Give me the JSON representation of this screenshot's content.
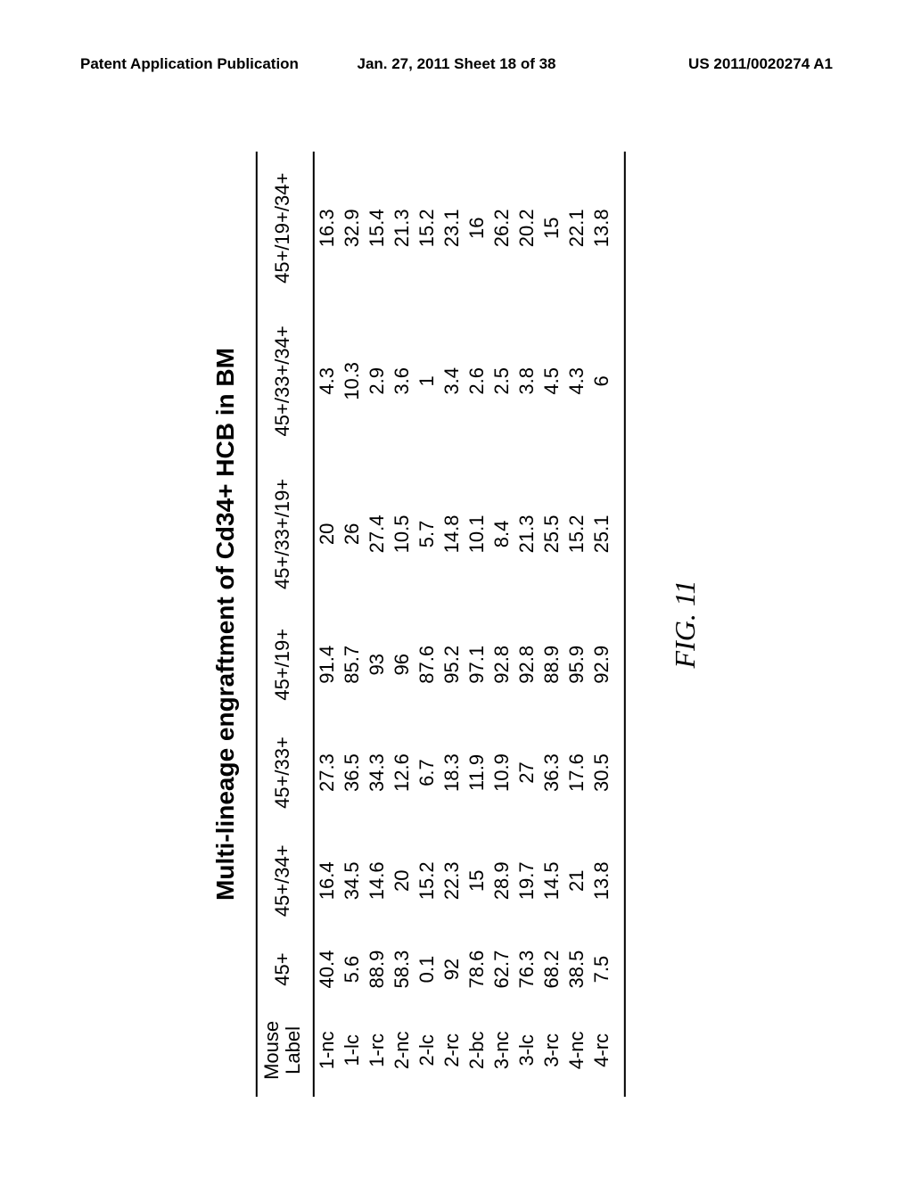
{
  "header": {
    "left": "Patent Application Publication",
    "center": "Jan. 27, 2011  Sheet 18 of 38",
    "right": "US 2011/0020274 A1"
  },
  "table": {
    "title": "Multi-lineage engraftment of Cd34+ HCB in BM",
    "columns": [
      "Mouse\nLabel",
      "45+",
      "45+/34+",
      "45+/33+",
      "45+/19+",
      "45+/33+/19+",
      "45+/33+/34+",
      "45+/19+/34+"
    ],
    "rows": [
      [
        "1-nc",
        "40.4",
        "16.4",
        "27.3",
        "91.4",
        "20",
        "4.3",
        "16.3"
      ],
      [
        "1-lc",
        "5.6",
        "34.5",
        "36.5",
        "85.7",
        "26",
        "10.3",
        "32.9"
      ],
      [
        "1-rc",
        "88.9",
        "14.6",
        "34.3",
        "93",
        "27.4",
        "2.9",
        "15.4"
      ],
      [
        "2-nc",
        "58.3",
        "20",
        "12.6",
        "96",
        "10.5",
        "3.6",
        "21.3"
      ],
      [
        "2-lc",
        "0.1",
        "15.2",
        "6.7",
        "87.6",
        "5.7",
        "1",
        "15.2"
      ],
      [
        "2-rc",
        "92",
        "22.3",
        "18.3",
        "95.2",
        "14.8",
        "3.4",
        "23.1"
      ],
      [
        "2-bc",
        "78.6",
        "15",
        "11.9",
        "97.1",
        "10.1",
        "2.6",
        "16"
      ],
      [
        "3-nc",
        "62.7",
        "28.9",
        "10.9",
        "92.8",
        "8.4",
        "2.5",
        "26.2"
      ],
      [
        "3-lc",
        "76.3",
        "19.7",
        "27",
        "92.8",
        "21.3",
        "3.8",
        "20.2"
      ],
      [
        "3-rc",
        "68.2",
        "14.5",
        "36.3",
        "88.9",
        "25.5",
        "4.5",
        "15"
      ],
      [
        "4-nc",
        "38.5",
        "21",
        "17.6",
        "95.9",
        "15.2",
        "4.3",
        "22.1"
      ],
      [
        "4-rc",
        "7.5",
        "13.8",
        "30.5",
        "92.9",
        "25.1",
        "6",
        "13.8"
      ]
    ]
  },
  "figure_caption": "FIG. 11"
}
